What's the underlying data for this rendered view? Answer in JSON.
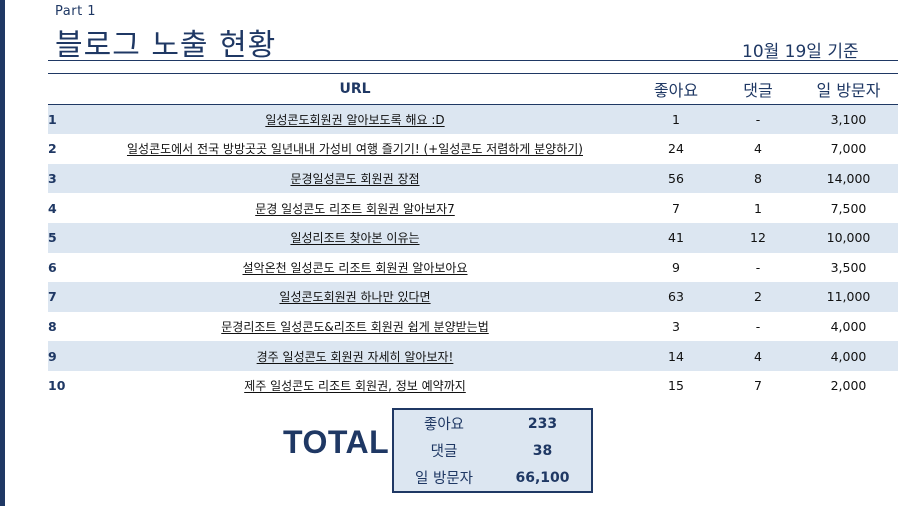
{
  "header": {
    "part": "Part 1",
    "title": "블로그 노출 현황",
    "date": "10월 19일 기준"
  },
  "table": {
    "columns": {
      "url": "URL",
      "likes": "좋아요",
      "comments": "댓글",
      "visitors": "일 방문자"
    },
    "rows": [
      {
        "num": "1",
        "url": "일성콘도회원권 알아보도록 해요 :D",
        "likes": "1",
        "comments": "-",
        "visitors": "3,100"
      },
      {
        "num": "2",
        "url": "일성콘도에서 전국 방방곳곳 일년내내 가성비 여행 즐기기! (+일성콘도 저렴하게 분양하기)",
        "likes": "24",
        "comments": "4",
        "visitors": "7,000"
      },
      {
        "num": "3",
        "url": "문경일성콘도 회원권 장점",
        "likes": "56",
        "comments": "8",
        "visitors": "14,000"
      },
      {
        "num": "4",
        "url": "문경 일성콘도 리조트 회원권 알아보자7",
        "likes": "7",
        "comments": "1",
        "visitors": "7,500"
      },
      {
        "num": "5",
        "url": "일성리조트 찾아본 이유는",
        "likes": "41",
        "comments": "12",
        "visitors": "10,000"
      },
      {
        "num": "6",
        "url": "설악온천 일성콘도 리조트 회원권 알아보아요",
        "likes": "9",
        "comments": "-",
        "visitors": "3,500"
      },
      {
        "num": "7",
        "url": "일성콘도회원권 하나만 있다면",
        "likes": "63",
        "comments": "2",
        "visitors": "11,000"
      },
      {
        "num": "8",
        "url": "문경리조트 일성콘도&리조트 회원권 쉽게 분양받는법",
        "likes": "3",
        "comments": "-",
        "visitors": "4,000"
      },
      {
        "num": "9",
        "url": "경주 일성콘도 회원권 자세히 알아보자!",
        "likes": "14",
        "comments": "4",
        "visitors": "4,000"
      },
      {
        "num": "10",
        "url": "제주 일성콘도 리조트 회원권, 정보 예약까지",
        "likes": "15",
        "comments": "7",
        "visitors": "2,000"
      }
    ]
  },
  "total": {
    "label": "TOTAL",
    "rows": [
      {
        "key": "좋아요",
        "value": "233"
      },
      {
        "key": "댓글",
        "value": "38"
      },
      {
        "key": "일 방문자",
        "value": "66,100"
      }
    ]
  },
  "colors": {
    "navy": "#1f3864",
    "stripe": "#dce6f1"
  }
}
